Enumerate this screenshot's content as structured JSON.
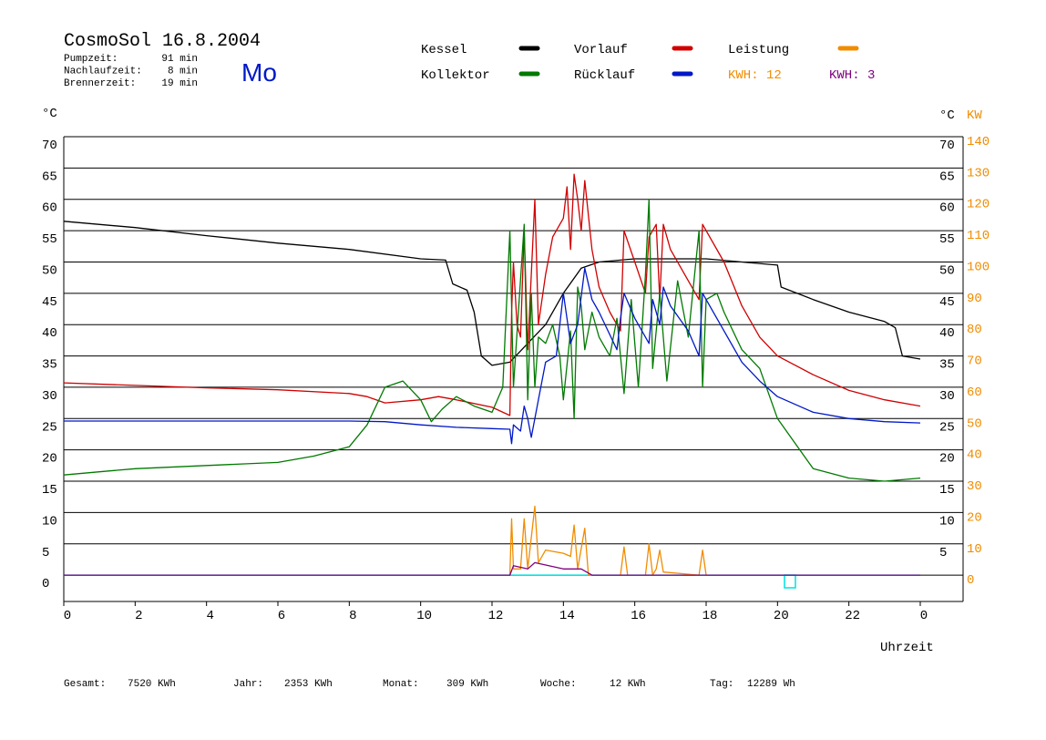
{
  "chart_data": {
    "type": "line",
    "title": "CosmoSol 16.8.2004",
    "day": "Mo",
    "info": [
      {
        "label": "Pumpzeit:",
        "value": "91 min"
      },
      {
        "label": "Nachlaufzeit:",
        "value": "8 min"
      },
      {
        "label": "Brennerzeit:",
        "value": "19 min"
      }
    ],
    "y_unit": "°C",
    "y2_unit": "KW",
    "right_y_unit": "°C",
    "x_label": "Uhrzeit",
    "xlim": [
      0,
      25.2
    ],
    "xticks": [
      0,
      2,
      4,
      6,
      8,
      10,
      12,
      14,
      16,
      18,
      20,
      22,
      {
        "value": 24,
        "label": "0"
      }
    ],
    "ylim": [
      -4.2,
      70
    ],
    "yticks": [
      0,
      5,
      10,
      15,
      20,
      25,
      30,
      35,
      40,
      45,
      50,
      55,
      60,
      65,
      70
    ],
    "right_yticks": [
      5,
      10,
      15,
      20,
      25,
      30,
      35,
      40,
      45,
      50,
      55,
      60,
      65,
      70
    ],
    "y2lim": [
      -8.4,
      140
    ],
    "y2ticks": [
      0,
      10,
      20,
      30,
      40,
      50,
      60,
      70,
      80,
      90,
      100,
      110,
      120,
      130,
      140
    ],
    "grid": true,
    "baseline_color": "#00e0e0",
    "series": [
      {
        "name": "Kessel",
        "color": "#000000",
        "x": [
          0,
          2,
          4,
          6,
          8,
          10,
          10.7,
          10.9,
          11.3,
          11.5,
          11.7,
          12,
          12.5,
          13,
          13.5,
          14,
          14.5,
          15,
          16,
          17,
          18,
          19,
          20,
          20.1,
          21,
          22,
          23,
          23.3,
          23.5,
          24
        ],
        "values": [
          56.5,
          55.5,
          54.2,
          53,
          52,
          50.5,
          50.3,
          46.5,
          45.5,
          42,
          35,
          33.5,
          34,
          37,
          40,
          45,
          49,
          50,
          50.5,
          50.5,
          50.5,
          50,
          49.5,
          46,
          44,
          42,
          40.5,
          39.5,
          35,
          34.5
        ]
      },
      {
        "name": "Vorlauf",
        "color": "#d00000",
        "x": [
          0,
          2,
          4,
          6,
          8,
          8.5,
          9,
          10,
          10.5,
          11,
          12,
          12.5,
          12.55,
          12.6,
          12.7,
          12.8,
          12.9,
          13,
          13.2,
          13.3,
          13.5,
          13.7,
          14,
          14.1,
          14.2,
          14.3,
          14.4,
          14.5,
          14.6,
          14.8,
          15,
          15.3,
          15.6,
          15.7,
          16,
          16.3,
          16.4,
          16.5,
          16.6,
          16.7,
          16.8,
          17,
          17.5,
          17.8,
          17.9,
          18,
          18.5,
          19,
          19.5,
          20,
          21,
          22,
          23,
          24
        ],
        "values": [
          30.7,
          30.3,
          29.9,
          29.6,
          29,
          28.5,
          27.5,
          28,
          28.5,
          28,
          26.8,
          25.5,
          42,
          50,
          40,
          38,
          55,
          36,
          60,
          40,
          48,
          54,
          57,
          62,
          52,
          64,
          60,
          55,
          63,
          52,
          46,
          42,
          39,
          55,
          50,
          45,
          54,
          55,
          56,
          44,
          56,
          52,
          47,
          44,
          56,
          55,
          50,
          43,
          38,
          35,
          32,
          29.5,
          28,
          27
        ]
      },
      {
        "name": "Leistung",
        "color": "#f08c00",
        "axis": "y2",
        "x": [
          0,
          12.5,
          12.55,
          12.6,
          12.8,
          12.9,
          13,
          13.2,
          13.3,
          13.5,
          14,
          14.2,
          14.3,
          14.4,
          14.6,
          14.7,
          15.6,
          15.7,
          15.8,
          16.3,
          16.4,
          16.5,
          16.6,
          16.7,
          16.8,
          17.8,
          17.9,
          18,
          24
        ],
        "values": [
          0,
          0,
          18,
          2,
          2,
          18,
          2,
          22,
          4,
          8,
          7,
          6,
          16,
          2,
          15,
          0,
          0,
          9,
          0,
          0,
          10,
          0,
          2,
          8,
          1,
          0,
          8,
          0,
          0
        ]
      },
      {
        "name": "Kollektor",
        "color": "#007a00",
        "x": [
          0,
          1,
          2,
          4,
          6,
          7,
          8,
          8.5,
          9,
          9.5,
          10,
          10.3,
          10.6,
          11,
          11.5,
          12,
          12.3,
          12.5,
          12.6,
          12.9,
          13,
          13.1,
          13.2,
          13.3,
          13.5,
          13.7,
          13.9,
          14,
          14.2,
          14.3,
          14.4,
          14.5,
          14.6,
          14.8,
          15,
          15.3,
          15.5,
          15.7,
          15.9,
          16.1,
          16.3,
          16.4,
          16.5,
          16.7,
          16.9,
          17.2,
          17.5,
          17.8,
          17.9,
          18,
          18.3,
          18.5,
          19,
          19.5,
          20,
          21,
          22,
          23,
          24
        ],
        "values": [
          16,
          16.5,
          17,
          17.5,
          18,
          19,
          20.5,
          24,
          30,
          31,
          28,
          24.5,
          26.5,
          28.5,
          27,
          26,
          30,
          55,
          30,
          56,
          28,
          45,
          30,
          38,
          37,
          40,
          35,
          28,
          39,
          25,
          46,
          43,
          36,
          42,
          38,
          35,
          41,
          29,
          44,
          30,
          48,
          60,
          33,
          45,
          31,
          47,
          38,
          55,
          30,
          44,
          45,
          42,
          36,
          33,
          25,
          17,
          15.5,
          15,
          15.5
        ]
      },
      {
        "name": "Rücklauf",
        "color": "#0018c8",
        "x": [
          0,
          2,
          4,
          6,
          8,
          9,
          10,
          11,
          12,
          12.5,
          12.55,
          12.6,
          12.8,
          12.9,
          13,
          13.1,
          13.3,
          13.5,
          13.8,
          14,
          14.2,
          14.4,
          14.6,
          14.8,
          15,
          15.5,
          15.6,
          15.7,
          16,
          16.4,
          16.5,
          16.7,
          16.8,
          17,
          17.5,
          17.8,
          17.9,
          18,
          18.5,
          19,
          19.5,
          20,
          21,
          22,
          23,
          24
        ],
        "values": [
          24.6,
          24.6,
          24.6,
          24.6,
          24.6,
          24.5,
          24,
          23.6,
          23.4,
          23.3,
          21,
          24,
          23,
          27,
          25,
          22,
          28,
          34,
          35,
          45,
          37,
          40,
          49,
          44,
          42,
          36,
          41,
          45,
          41,
          37,
          44,
          40,
          46,
          43,
          39,
          35,
          45,
          44,
          39,
          34,
          31,
          28.5,
          26,
          25,
          24.5,
          24.3
        ]
      },
      {
        "color": "#800080",
        "axis": "y2",
        "x": [
          0,
          12.5,
          12.6,
          13,
          13.2,
          14,
          14.5,
          14.8,
          24
        ],
        "values": [
          0,
          0,
          3,
          2,
          4,
          2,
          2,
          0,
          0
        ]
      }
    ],
    "kwh_labels": [
      {
        "text": "KWH: 12",
        "color": "#f08c00"
      },
      {
        "text": "KWH: 3",
        "color": "#800080"
      }
    ],
    "footer": [
      {
        "label": "Gesamt:",
        "value": "7520 KWh"
      },
      {
        "label": "Jahr:",
        "value": "2353 KWh"
      },
      {
        "label": "Monat:",
        "value": "309 KWh"
      },
      {
        "label": "Woche:",
        "value": "12 KWh"
      },
      {
        "label": "Tag:",
        "value": "12289 Wh"
      }
    ]
  }
}
